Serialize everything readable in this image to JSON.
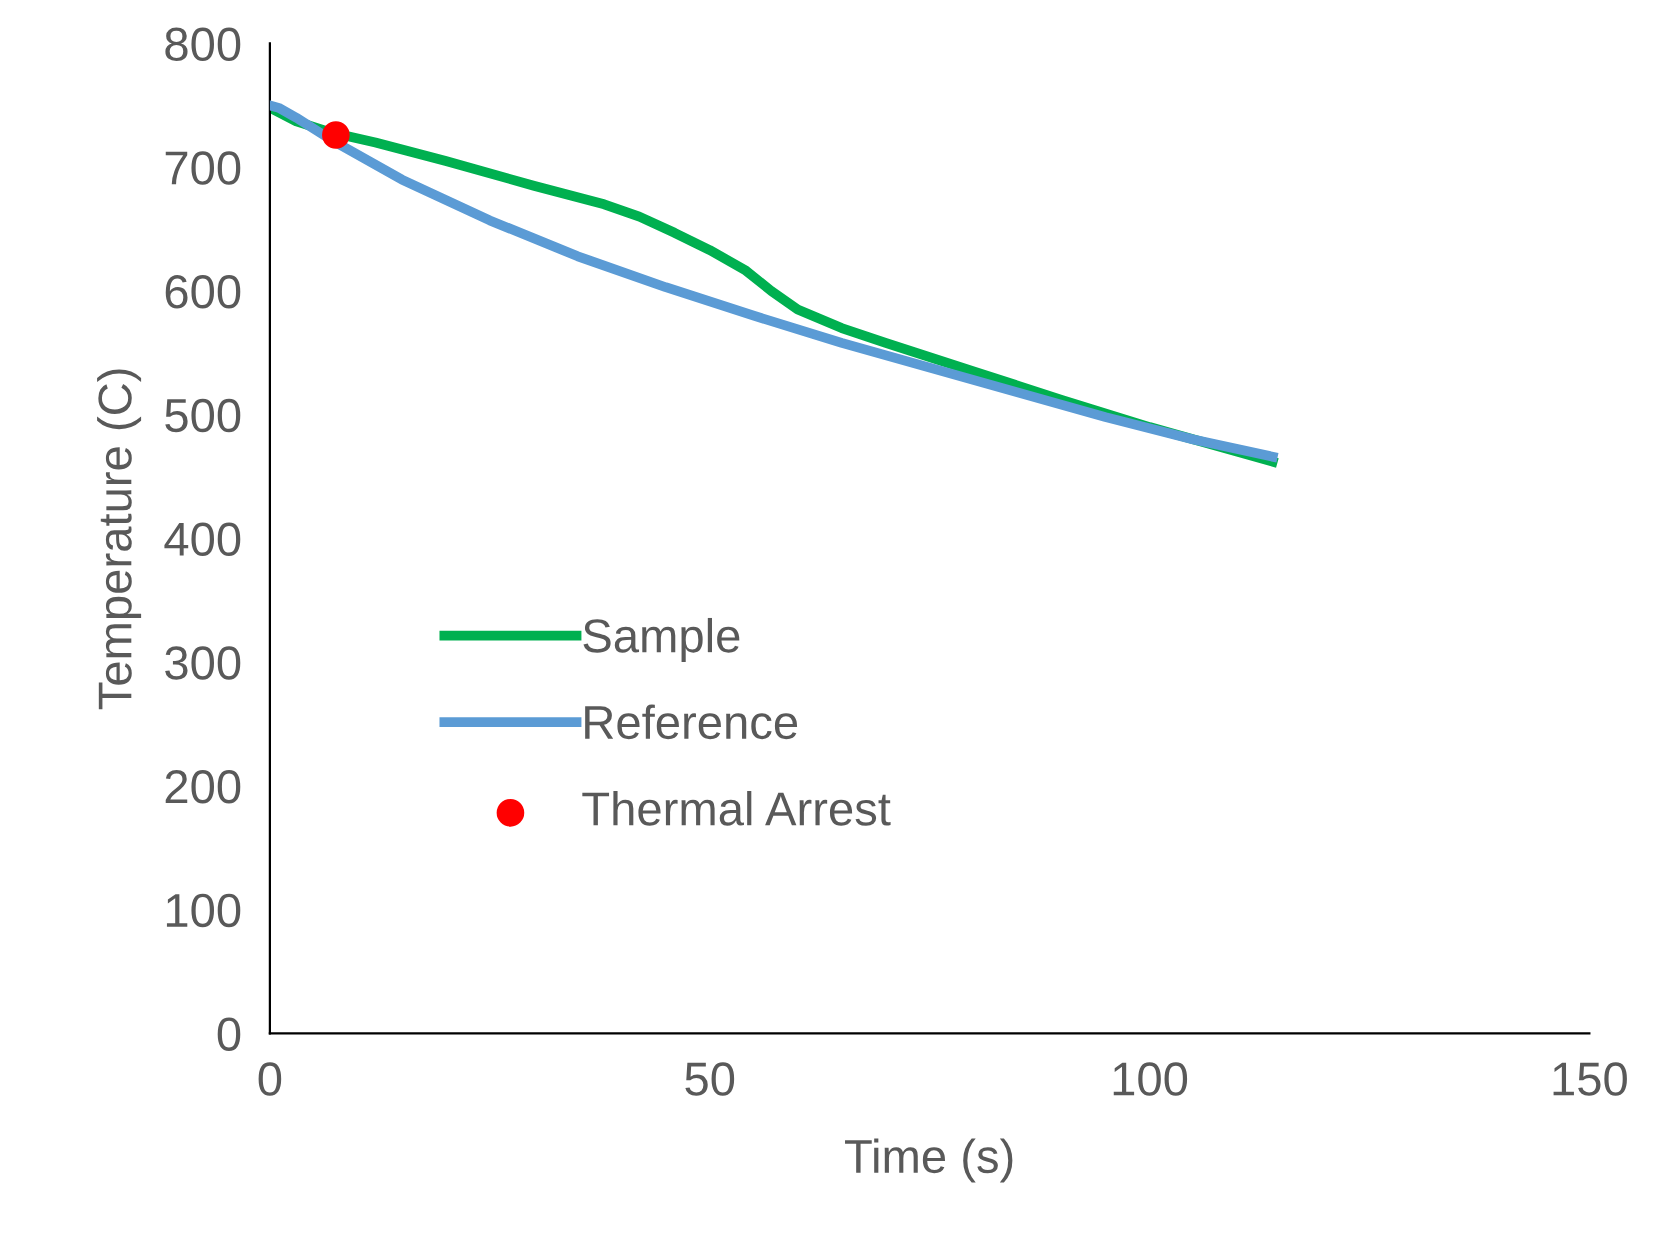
{
  "chart_data": {
    "type": "line",
    "xlabel": "Time (s)",
    "ylabel": "Temperature (C)",
    "xlim": [
      0,
      150
    ],
    "xticks": [
      0,
      50,
      100,
      150
    ],
    "ylim": [
      0,
      800
    ],
    "yticks": [
      0,
      100,
      200,
      300,
      400,
      500,
      600,
      700,
      800
    ],
    "grid": false,
    "legend": "left",
    "marker": "none",
    "series": [
      {
        "name": "Sample",
        "color": "#00b050",
        "x": [
          0,
          3,
          7,
          12,
          20,
          30,
          38,
          42,
          46,
          50,
          54,
          57,
          60,
          65,
          70,
          80,
          90,
          100,
          114
        ],
        "values": [
          748,
          737,
          728,
          720,
          705,
          685,
          670,
          660,
          647,
          633,
          617,
          600,
          585,
          570,
          558,
          535,
          512,
          490,
          462
        ]
      },
      {
        "name": "Reference",
        "color": "#5b9bd5",
        "x": [
          0,
          1,
          3,
          7,
          15,
          25,
          35,
          45,
          55,
          65,
          75,
          85,
          95,
          105,
          114
        ],
        "values": [
          750,
          748,
          740,
          722,
          690,
          657,
          628,
          603,
          580,
          558,
          538,
          518,
          498,
          480,
          466
        ]
      },
      {
        "name": "Thermal Arrest",
        "type": "scatter",
        "marker": "circle",
        "color": "#ff0000",
        "x": [
          7.5
        ],
        "values": [
          726
        ]
      }
    ]
  }
}
